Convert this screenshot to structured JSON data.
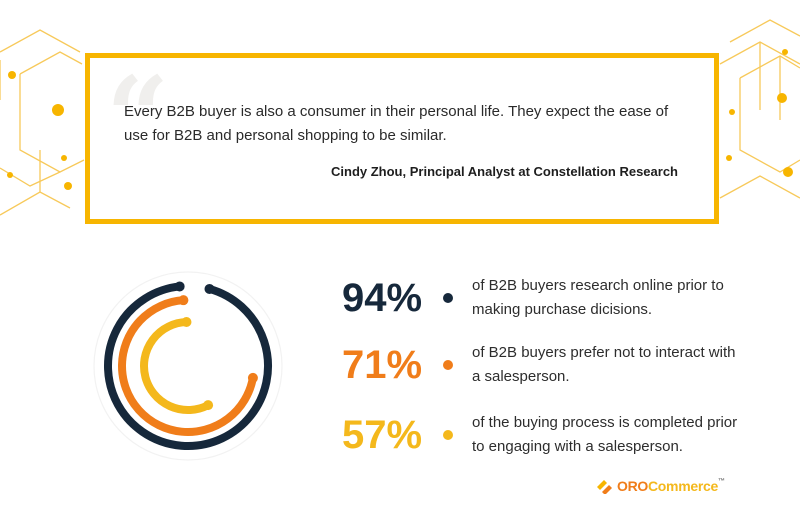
{
  "quote": {
    "text": "Every B2B buyer is also a consumer in their personal life. They expect the ease of use for B2B and personal shopping to be similar.",
    "author": "Cindy Zhou, Principal Analyst at Constellation Research"
  },
  "colors": {
    "frame": "#f7b500",
    "navy": "#16283b",
    "orange": "#f07d1a",
    "yellow": "#f4b81c",
    "hex_line": "#f7c95a"
  },
  "chart_data": {
    "type": "radial-bar",
    "series": [
      {
        "value": 94,
        "unit": "%",
        "label": "94%",
        "description": "of B2B buyers research online prior to making purchase dicisions.",
        "color": "#16283b"
      },
      {
        "value": 71,
        "unit": "%",
        "label": "71%",
        "description": "of B2B buyers prefer not to interact with a salesperson.",
        "color": "#f07d1a"
      },
      {
        "value": 57,
        "unit": "%",
        "label": "57%",
        "description": "of the buying process is completed prior to engaging with a salesperson.",
        "color": "#f4b81c"
      }
    ]
  },
  "logo": {
    "prefix": "ORO",
    "name": "Commerce",
    "tm": "™"
  }
}
